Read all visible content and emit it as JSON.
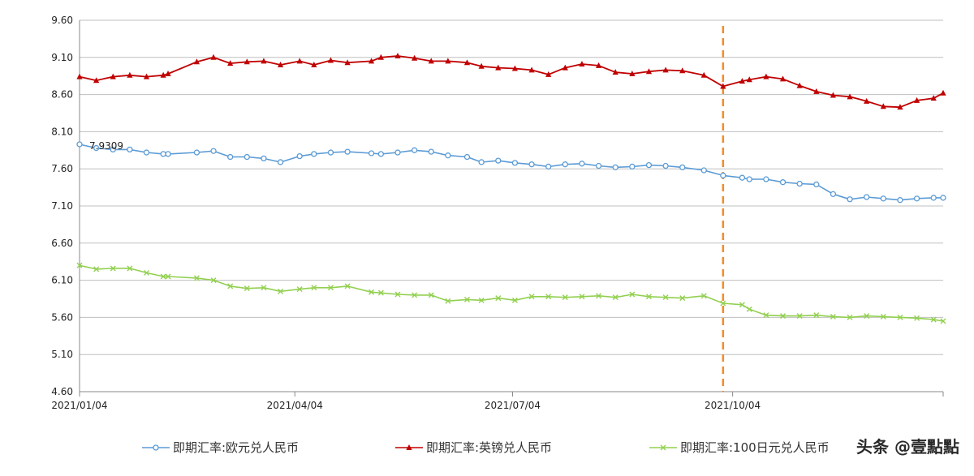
{
  "chart_data": {
    "type": "line",
    "x_ticks": [
      "2021/01/04",
      "2021/04/04",
      "2021/07/04",
      "2021/10/04"
    ],
    "ylim": [
      4.6,
      9.6
    ],
    "y_ticks": [
      "4.60",
      "5.10",
      "5.60",
      "6.10",
      "6.60",
      "7.10",
      "7.60",
      "8.10",
      "8.60",
      "9.10",
      "9.60"
    ],
    "grid": "horizontal",
    "legend_position": "bottom",
    "marker_line": {
      "date": "2021-09-30",
      "color": "#F28C28",
      "style": "dashed"
    },
    "annotations": [
      {
        "series": 0,
        "date": "2021-01-04",
        "text": "7.9309"
      }
    ],
    "series": [
      {
        "name": "即期汇率:欧元兑人民币",
        "color": "#5B9BD5",
        "marker": "circle",
        "points": [
          [
            "2021-01-04",
            7.93
          ],
          [
            "2021-01-11",
            7.88
          ],
          [
            "2021-01-18",
            7.86
          ],
          [
            "2021-01-25",
            7.86
          ],
          [
            "2021-02-01",
            7.82
          ],
          [
            "2021-02-08",
            7.8
          ],
          [
            "2021-02-10",
            7.8
          ],
          [
            "2021-02-22",
            7.82
          ],
          [
            "2021-03-01",
            7.84
          ],
          [
            "2021-03-08",
            7.76
          ],
          [
            "2021-03-15",
            7.76
          ],
          [
            "2021-03-22",
            7.74
          ],
          [
            "2021-03-29",
            7.69
          ],
          [
            "2021-04-06",
            7.77
          ],
          [
            "2021-04-12",
            7.8
          ],
          [
            "2021-04-19",
            7.82
          ],
          [
            "2021-04-26",
            7.83
          ],
          [
            "2021-05-06",
            7.81
          ],
          [
            "2021-05-10",
            7.8
          ],
          [
            "2021-05-17",
            7.82
          ],
          [
            "2021-05-24",
            7.85
          ],
          [
            "2021-05-31",
            7.83
          ],
          [
            "2021-06-07",
            7.78
          ],
          [
            "2021-06-15",
            7.76
          ],
          [
            "2021-06-21",
            7.69
          ],
          [
            "2021-06-28",
            7.71
          ],
          [
            "2021-07-05",
            7.68
          ],
          [
            "2021-07-12",
            7.66
          ],
          [
            "2021-07-19",
            7.63
          ],
          [
            "2021-07-26",
            7.66
          ],
          [
            "2021-08-02",
            7.67
          ],
          [
            "2021-08-09",
            7.64
          ],
          [
            "2021-08-16",
            7.62
          ],
          [
            "2021-08-23",
            7.63
          ],
          [
            "2021-08-30",
            7.65
          ],
          [
            "2021-09-06",
            7.64
          ],
          [
            "2021-09-13",
            7.62
          ],
          [
            "2021-09-22",
            7.58
          ],
          [
            "2021-09-30",
            7.51
          ],
          [
            "2021-10-08",
            7.48
          ],
          [
            "2021-10-11",
            7.46
          ],
          [
            "2021-10-18",
            7.46
          ],
          [
            "2021-10-25",
            7.42
          ],
          [
            "2021-11-01",
            7.4
          ],
          [
            "2021-11-08",
            7.39
          ],
          [
            "2021-11-15",
            7.26
          ],
          [
            "2021-11-22",
            7.19
          ],
          [
            "2021-11-29",
            7.22
          ],
          [
            "2021-12-06",
            7.2
          ],
          [
            "2021-12-13",
            7.18
          ],
          [
            "2021-12-20",
            7.2
          ],
          [
            "2021-12-27",
            7.21
          ],
          [
            "2021-12-31",
            7.21
          ]
        ]
      },
      {
        "name": "即期汇率:英镑兑人民币",
        "color": "#C00000",
        "marker": "triangle",
        "points": [
          [
            "2021-01-04",
            8.84
          ],
          [
            "2021-01-11",
            8.79
          ],
          [
            "2021-01-18",
            8.84
          ],
          [
            "2021-01-25",
            8.86
          ],
          [
            "2021-02-01",
            8.84
          ],
          [
            "2021-02-08",
            8.86
          ],
          [
            "2021-02-10",
            8.88
          ],
          [
            "2021-02-22",
            9.04
          ],
          [
            "2021-03-01",
            9.1
          ],
          [
            "2021-03-08",
            9.02
          ],
          [
            "2021-03-15",
            9.04
          ],
          [
            "2021-03-22",
            9.05
          ],
          [
            "2021-03-29",
            9.0
          ],
          [
            "2021-04-06",
            9.05
          ],
          [
            "2021-04-12",
            9.0
          ],
          [
            "2021-04-19",
            9.06
          ],
          [
            "2021-04-26",
            9.03
          ],
          [
            "2021-05-06",
            9.05
          ],
          [
            "2021-05-10",
            9.1
          ],
          [
            "2021-05-17",
            9.12
          ],
          [
            "2021-05-24",
            9.09
          ],
          [
            "2021-05-31",
            9.05
          ],
          [
            "2021-06-07",
            9.05
          ],
          [
            "2021-06-15",
            9.03
          ],
          [
            "2021-06-21",
            8.98
          ],
          [
            "2021-06-28",
            8.96
          ],
          [
            "2021-07-05",
            8.95
          ],
          [
            "2021-07-12",
            8.93
          ],
          [
            "2021-07-19",
            8.87
          ],
          [
            "2021-07-26",
            8.96
          ],
          [
            "2021-08-02",
            9.01
          ],
          [
            "2021-08-09",
            8.99
          ],
          [
            "2021-08-16",
            8.9
          ],
          [
            "2021-08-23",
            8.88
          ],
          [
            "2021-08-30",
            8.91
          ],
          [
            "2021-09-06",
            8.93
          ],
          [
            "2021-09-13",
            8.92
          ],
          [
            "2021-09-22",
            8.86
          ],
          [
            "2021-09-30",
            8.71
          ],
          [
            "2021-10-08",
            8.78
          ],
          [
            "2021-10-11",
            8.8
          ],
          [
            "2021-10-18",
            8.84
          ],
          [
            "2021-10-25",
            8.81
          ],
          [
            "2021-11-01",
            8.72
          ],
          [
            "2021-11-08",
            8.64
          ],
          [
            "2021-11-15",
            8.59
          ],
          [
            "2021-11-22",
            8.57
          ],
          [
            "2021-11-29",
            8.51
          ],
          [
            "2021-12-06",
            8.44
          ],
          [
            "2021-12-13",
            8.43
          ],
          [
            "2021-12-20",
            8.52
          ],
          [
            "2021-12-27",
            8.55
          ],
          [
            "2021-12-31",
            8.62
          ]
        ]
      },
      {
        "name": "即期汇率:100日元兑人民币",
        "color": "#92D050",
        "marker": "x",
        "points": [
          [
            "2021-01-04",
            6.3
          ],
          [
            "2021-01-11",
            6.25
          ],
          [
            "2021-01-18",
            6.26
          ],
          [
            "2021-01-25",
            6.26
          ],
          [
            "2021-02-01",
            6.2
          ],
          [
            "2021-02-08",
            6.15
          ],
          [
            "2021-02-10",
            6.15
          ],
          [
            "2021-02-22",
            6.13
          ],
          [
            "2021-03-01",
            6.1
          ],
          [
            "2021-03-08",
            6.02
          ],
          [
            "2021-03-15",
            5.99
          ],
          [
            "2021-03-22",
            6.0
          ],
          [
            "2021-03-29",
            5.95
          ],
          [
            "2021-04-06",
            5.98
          ],
          [
            "2021-04-12",
            6.0
          ],
          [
            "2021-04-19",
            6.0
          ],
          [
            "2021-04-26",
            6.02
          ],
          [
            "2021-05-06",
            5.94
          ],
          [
            "2021-05-10",
            5.93
          ],
          [
            "2021-05-17",
            5.91
          ],
          [
            "2021-05-24",
            5.9
          ],
          [
            "2021-05-31",
            5.9
          ],
          [
            "2021-06-07",
            5.82
          ],
          [
            "2021-06-15",
            5.84
          ],
          [
            "2021-06-21",
            5.83
          ],
          [
            "2021-06-28",
            5.86
          ],
          [
            "2021-07-05",
            5.83
          ],
          [
            "2021-07-12",
            5.88
          ],
          [
            "2021-07-19",
            5.88
          ],
          [
            "2021-07-26",
            5.87
          ],
          [
            "2021-08-02",
            5.88
          ],
          [
            "2021-08-09",
            5.89
          ],
          [
            "2021-08-16",
            5.87
          ],
          [
            "2021-08-23",
            5.91
          ],
          [
            "2021-08-30",
            5.88
          ],
          [
            "2021-09-06",
            5.87
          ],
          [
            "2021-09-13",
            5.86
          ],
          [
            "2021-09-22",
            5.89
          ],
          [
            "2021-09-30",
            5.79
          ],
          [
            "2021-10-08",
            5.77
          ],
          [
            "2021-10-11",
            5.71
          ],
          [
            "2021-10-18",
            5.63
          ],
          [
            "2021-10-25",
            5.62
          ],
          [
            "2021-11-01",
            5.62
          ],
          [
            "2021-11-08",
            5.63
          ],
          [
            "2021-11-15",
            5.61
          ],
          [
            "2021-11-22",
            5.6
          ],
          [
            "2021-11-29",
            5.62
          ],
          [
            "2021-12-06",
            5.61
          ],
          [
            "2021-12-13",
            5.6
          ],
          [
            "2021-12-20",
            5.59
          ],
          [
            "2021-12-27",
            5.57
          ],
          [
            "2021-12-31",
            5.55
          ]
        ]
      }
    ]
  },
  "watermark": "头条 @壹點點"
}
